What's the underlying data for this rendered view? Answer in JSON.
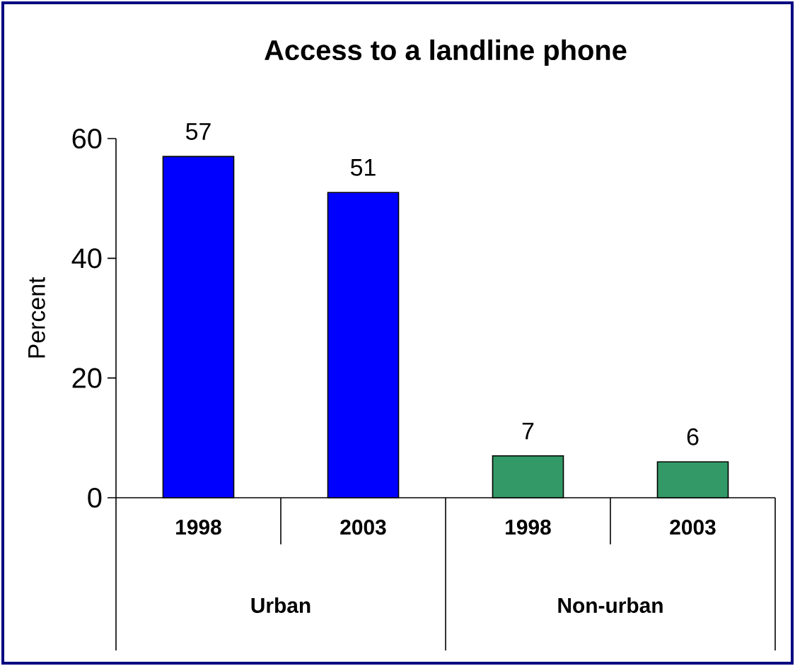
{
  "chart_data": {
    "type": "bar",
    "title": "Access to a landline phone",
    "ylabel": "Percent",
    "categories": [
      "1998",
      "2003",
      "1998",
      "2003"
    ],
    "values": [
      57,
      51,
      7,
      6
    ],
    "colors": [
      "#0000ff",
      "#0000ff",
      "#339966",
      "#339966"
    ],
    "ylim": [
      0,
      60
    ],
    "yticks": [
      0,
      20,
      40,
      60
    ],
    "data_labels": true,
    "annotations": [
      "Urban",
      "Non-urban"
    ]
  }
}
